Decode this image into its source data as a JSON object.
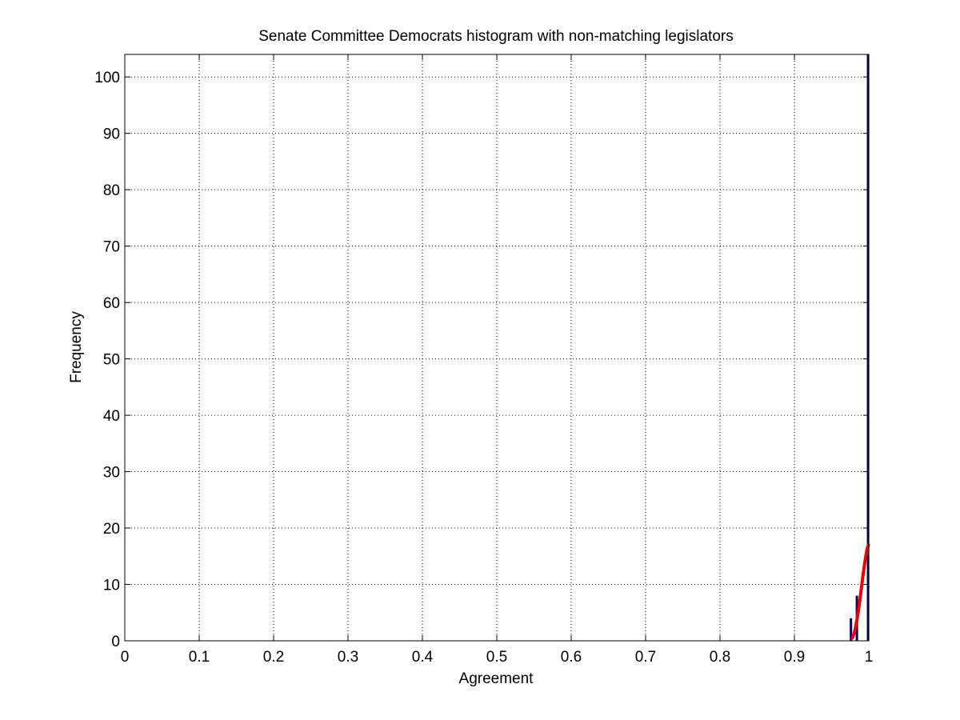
{
  "chart_data": {
    "type": "bar",
    "title": "Senate Committee Democrats histogram with non-matching legislators",
    "xlabel": "Agreement",
    "ylabel": "Frequency",
    "xlim": [
      0,
      1
    ],
    "ylim": [
      0,
      104
    ],
    "grid": true,
    "x_ticks": [
      "0",
      "0.1",
      "0.2",
      "0.3",
      "0.4",
      "0.5",
      "0.6",
      "0.7",
      "0.8",
      "0.9",
      "1"
    ],
    "y_ticks": [
      "0",
      "10",
      "20",
      "30",
      "40",
      "50",
      "60",
      "70",
      "80",
      "90",
      "100"
    ],
    "bar_color": "#000060",
    "bins": {
      "x": [
        0.976,
        0.984,
        0.999
      ],
      "y": [
        4,
        8,
        104
      ]
    },
    "fit_curve": {
      "color": "#ee0000",
      "x": [
        0.978,
        0.98,
        0.982,
        0.984,
        0.986,
        0.988,
        0.99,
        0.992,
        0.994,
        0.996,
        0.998,
        0.9995
      ],
      "y": [
        0.5,
        1.2,
        2.2,
        3.6,
        5.3,
        7.2,
        9.3,
        11.4,
        13.3,
        15.0,
        16.4,
        17.0
      ]
    }
  }
}
